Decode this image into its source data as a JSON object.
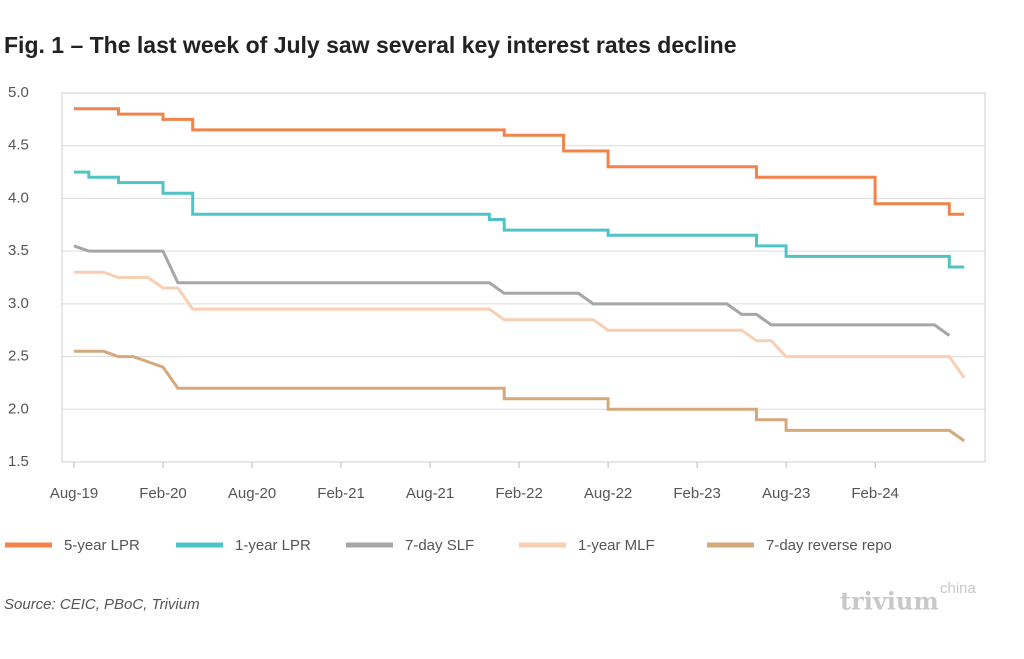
{
  "chart_data": {
    "type": "line",
    "title": "Fig. 1 – The last week of July saw several key interest rates decline",
    "source": "Source: CEIC, PBoC, Trivium",
    "xlim": [
      "2019-08",
      "2024-09"
    ],
    "xticks": [
      {
        "value": "2019-08",
        "label": "Aug-19"
      },
      {
        "value": "2020-02",
        "label": "Feb-20"
      },
      {
        "value": "2020-08",
        "label": "Aug-20"
      },
      {
        "value": "2021-02",
        "label": "Feb-21"
      },
      {
        "value": "2021-08",
        "label": "Aug-21"
      },
      {
        "value": "2022-02",
        "label": "Feb-22"
      },
      {
        "value": "2022-08",
        "label": "Aug-22"
      },
      {
        "value": "2023-02",
        "label": "Feb-23"
      },
      {
        "value": "2023-08",
        "label": "Aug-23"
      },
      {
        "value": "2024-02",
        "label": "Feb-24"
      }
    ],
    "ylim": [
      1.5,
      5.0
    ],
    "yticks": [
      1.5,
      {
        "value": 2.0,
        "label": "2.0"
      },
      2.5,
      {
        "value": 3.0,
        "label": "3.0"
      },
      3.5,
      {
        "value": 4.0,
        "label": "4.0"
      },
      4.5,
      {
        "value": 5.0,
        "label": "5.0"
      }
    ],
    "grid": true,
    "series": [
      {
        "name": "5-year LPR",
        "color": "#f0844a",
        "x": [
          "2019-08",
          "2019-11",
          "2019-11",
          "2020-02",
          "2020-02",
          "2020-04",
          "2020-04",
          "2022-01",
          "2022-01",
          "2022-05",
          "2022-05",
          "2022-08",
          "2022-08",
          "2023-06",
          "2023-06",
          "2024-02",
          "2024-02",
          "2024-07",
          "2024-07",
          "2024-08"
        ],
        "values": [
          4.85,
          4.85,
          4.8,
          4.8,
          4.75,
          4.75,
          4.65,
          4.65,
          4.6,
          4.6,
          4.45,
          4.45,
          4.3,
          4.3,
          4.2,
          4.2,
          3.95,
          3.95,
          3.85,
          3.85
        ]
      },
      {
        "name": "1-year LPR",
        "color": "#4fc3c6",
        "x": [
          "2019-08",
          "2019-09",
          "2019-09",
          "2019-11",
          "2019-11",
          "2020-02",
          "2020-02",
          "2020-04",
          "2020-04",
          "2021-12",
          "2021-12",
          "2022-01",
          "2022-01",
          "2022-08",
          "2022-08",
          "2023-06",
          "2023-06",
          "2023-08",
          "2023-08",
          "2024-07",
          "2024-07",
          "2024-08"
        ],
        "values": [
          4.25,
          4.25,
          4.2,
          4.2,
          4.15,
          4.15,
          4.05,
          4.05,
          3.85,
          3.85,
          3.8,
          3.8,
          3.7,
          3.7,
          3.65,
          3.65,
          3.55,
          3.55,
          3.45,
          3.45,
          3.35,
          3.35
        ]
      },
      {
        "name": "7-day SLF",
        "color": "#a6a6a6",
        "x": [
          "2019-08",
          "2019-09",
          "2020-02",
          "2020-03",
          "2021-12",
          "2022-01",
          "2022-06",
          "2022-07",
          "2023-04",
          "2023-05",
          "2023-06",
          "2023-07",
          "2024-06",
          "2024-07"
        ],
        "values": [
          3.55,
          3.5,
          3.5,
          3.2,
          3.2,
          3.1,
          3.1,
          3.0,
          3.0,
          2.9,
          2.9,
          2.8,
          2.8,
          2.7
        ]
      },
      {
        "name": "1-year MLF",
        "color": "#f9cfb4",
        "x": [
          "2019-08",
          "2019-10",
          "2019-11",
          "2020-01",
          "2020-02",
          "2020-03",
          "2020-04",
          "2021-12",
          "2022-01",
          "2022-07",
          "2022-08",
          "2023-05",
          "2023-06",
          "2023-07",
          "2023-08",
          "2024-07",
          "2024-08"
        ],
        "values": [
          3.3,
          3.3,
          3.25,
          3.25,
          3.15,
          3.15,
          2.95,
          2.95,
          2.85,
          2.85,
          2.75,
          2.75,
          2.65,
          2.65,
          2.5,
          2.5,
          2.3
        ]
      },
      {
        "name": "7-day reverse repo",
        "color": "#d5a97c",
        "x": [
          "2019-08",
          "2019-10",
          "2019-11",
          "2019-12",
          "2020-02",
          "2020-03",
          "2022-01",
          "2022-01",
          "2022-08",
          "2022-08",
          "2023-06",
          "2023-06",
          "2023-08",
          "2023-08",
          "2024-07",
          "2024-08"
        ],
        "values": [
          2.55,
          2.55,
          2.5,
          2.5,
          2.4,
          2.2,
          2.2,
          2.1,
          2.1,
          2.0,
          2.0,
          1.9,
          1.9,
          1.8,
          1.8,
          1.7
        ]
      }
    ]
  },
  "logo": {
    "text": "trivium",
    "superscript": "china"
  }
}
